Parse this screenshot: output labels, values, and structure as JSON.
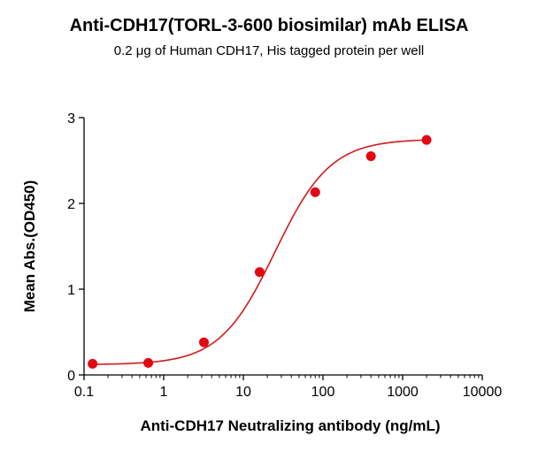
{
  "chart_data": {
    "type": "scatter",
    "title": "Anti-CDH17(TORL-3-600 biosimilar) mAb ELISA",
    "subtitle": "0.2 μg of Human CDH17, His tagged protein per well",
    "xlabel": "Anti-CDH17 Neutralizing antibody (ng/mL)",
    "ylabel": "Mean Abs.(OD450)",
    "x_scale": "log",
    "xlim": [
      0.1,
      10000
    ],
    "ylim": [
      0,
      3
    ],
    "x_ticks": [
      0.1,
      1,
      10,
      100,
      1000,
      10000
    ],
    "x_tick_labels": [
      "0.1",
      "1",
      "10",
      "100",
      "1000",
      "10000"
    ],
    "y_ticks": [
      0,
      1,
      2,
      3
    ],
    "y_tick_labels": [
      "0",
      "1",
      "2",
      "3"
    ],
    "grid": false,
    "legend": "none",
    "series": [
      {
        "x": [
          0.128,
          0.64,
          3.2,
          16,
          80,
          400,
          2000
        ],
        "y": [
          0.13,
          0.14,
          0.38,
          1.2,
          2.13,
          2.55,
          2.74
        ]
      }
    ],
    "fit_curve": {
      "model": "4PL",
      "bottom": 0.12,
      "top": 2.75,
      "ec50": 25,
      "hill": 1.25
    },
    "colors": {
      "series": "#e30613",
      "curve": "#d11a1a",
      "axes": "#000000"
    }
  }
}
